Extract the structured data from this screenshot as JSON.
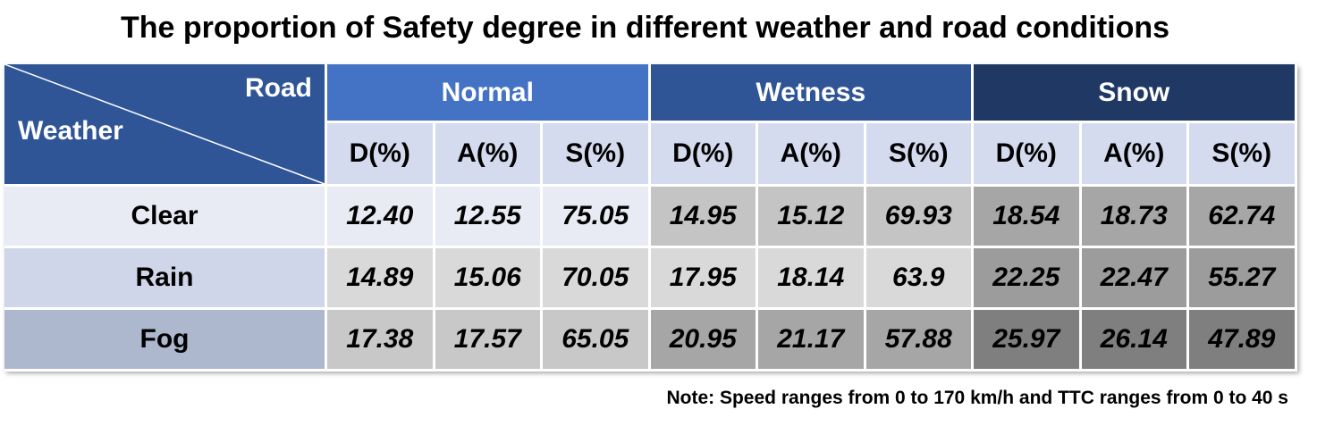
{
  "title": "The proportion of Safety degree in different weather and road conditions",
  "note": "Note: Speed ranges from 0 to 170 km/h and TTC ranges from 0 to 40 s",
  "corner": {
    "column_axis": "Road",
    "row_axis": "Weather"
  },
  "chart_data": {
    "type": "table",
    "title": "The proportion of Safety degree in different weather and road conditions",
    "column_groups": [
      {
        "name": "Normal",
        "color": "#4472c4",
        "columns": [
          "D(%)",
          "A(%)",
          "S(%)"
        ]
      },
      {
        "name": "Wetness",
        "color": "#2f5597",
        "columns": [
          "D(%)",
          "A(%)",
          "S(%)"
        ]
      },
      {
        "name": "Snow",
        "color": "#203864",
        "columns": [
          "D(%)",
          "A(%)",
          "S(%)"
        ]
      }
    ],
    "rows": [
      {
        "label": "Clear",
        "label_bg": "#e8eaf4",
        "values": [
          "12.40",
          "12.55",
          "75.05",
          "14.95",
          "15.12",
          "69.93",
          "18.54",
          "18.73",
          "62.74"
        ]
      },
      {
        "label": "Rain",
        "label_bg": "#d0d6ea",
        "values": [
          "14.89",
          "15.06",
          "70.05",
          "17.95",
          "18.14",
          "63.9",
          "22.25",
          "22.47",
          "55.27"
        ]
      },
      {
        "label": "Fog",
        "label_bg": "#adb8ce",
        "values": [
          "17.38",
          "17.57",
          "65.05",
          "20.95",
          "21.17",
          "57.88",
          "25.97",
          "26.14",
          "47.89"
        ]
      }
    ],
    "cell_colors": [
      [
        "#e8eaf4",
        "#e8eaf4",
        "#e8eaf4",
        "#c4c4c4",
        "#c4c4c4",
        "#c4c4c4",
        "#a6a6a6",
        "#a6a6a6",
        "#a6a6a6"
      ],
      [
        "#d9d9d9",
        "#d9d9d9",
        "#d9d9d9",
        "#d9d9d9",
        "#d9d9d9",
        "#d9d9d9",
        "#9c9c9c",
        "#9c9c9c",
        "#9c9c9c"
      ],
      [
        "#c8c8c8",
        "#c8c8c8",
        "#c8c8c8",
        "#a6a6a6",
        "#a6a6a6",
        "#a6a6a6",
        "#7f7f7f",
        "#7f7f7f",
        "#7f7f7f"
      ]
    ]
  }
}
